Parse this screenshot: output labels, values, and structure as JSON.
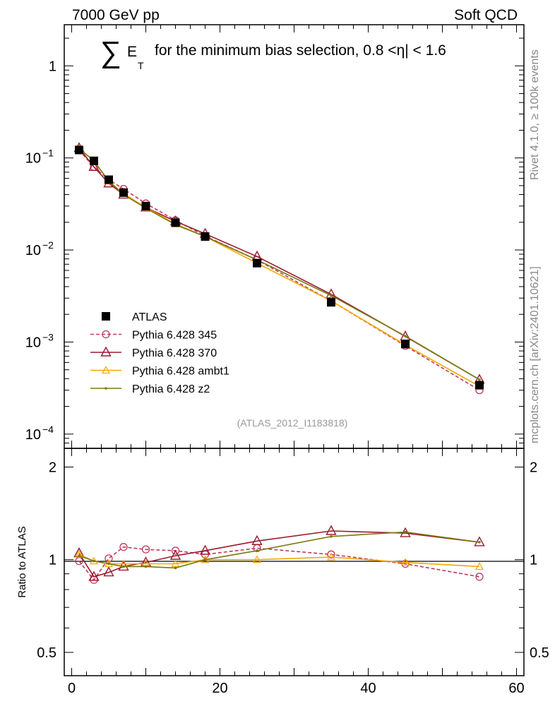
{
  "header": {
    "left": "7000 GeV pp",
    "right": "Soft QCD"
  },
  "title": {
    "sum_symbol": "∑",
    "e": "E",
    "t": "T",
    "text": "for the minimum bias selection, 0.8 <",
    "eta": "η",
    "suffix": "| < 1.6"
  },
  "side_labels": {
    "rivet": "Rivet 4.1.0, ≥ 100k events",
    "mcplots": "mcplots.cern.ch [arXiv:2401.10621]"
  },
  "analysis_id": "(ATLAS_2012_I1183818)",
  "main_y_ticks": [
    {
      "value": 1,
      "base": "1",
      "exp": ""
    },
    {
      "value": 0.1,
      "base": "10",
      "exp": "−1"
    },
    {
      "value": 0.01,
      "base": "10",
      "exp": "−2"
    },
    {
      "value": 0.001,
      "base": "10",
      "exp": "−3"
    },
    {
      "value": 0.0001,
      "base": "10",
      "exp": "−4"
    }
  ],
  "ratio_y_ticks": [
    {
      "value": 2,
      "label": "2"
    },
    {
      "value": 1,
      "label": "1"
    },
    {
      "value": 0.5,
      "label": "0.5"
    }
  ],
  "x_ticks": [
    {
      "value": 0,
      "label": "0"
    },
    {
      "value": 20,
      "label": "20"
    },
    {
      "value": 40,
      "label": "40"
    },
    {
      "value": 60,
      "label": "60"
    }
  ],
  "ratio_ylabel": "Ratio to ATLAS",
  "colors": {
    "atlas": "#000000",
    "p345": "#c0395a",
    "p370": "#9b1a30",
    "ambt1": "#f5a800",
    "z2": "#7a7a10",
    "grey_text": "#888888"
  },
  "chart_data": {
    "type": "line",
    "title": "∑ E_T for the minimum bias selection, 0.8 < |η| < 1.6",
    "xlabel": "",
    "ylabel": "",
    "xlim": [
      -1,
      61
    ],
    "ylim": [
      7e-05,
      2.8
    ],
    "yscale": "log",
    "ratio_ylim": [
      0.42,
      2.3
    ],
    "ratio_ylabel": "Ratio to ATLAS",
    "x": [
      1,
      3,
      5,
      7,
      10,
      14,
      18,
      25,
      35,
      45,
      55
    ],
    "series": [
      {
        "name": "ATLAS",
        "key": "atlas",
        "style": "data",
        "values": [
          0.122,
          0.093,
          0.058,
          0.042,
          0.03,
          0.0198,
          0.014,
          0.0072,
          0.0027,
          0.00095,
          0.00034
        ],
        "ratio": [
          1,
          1,
          1,
          1,
          1,
          1,
          1,
          1,
          1,
          1,
          1
        ]
      },
      {
        "name": "Pythia 6.428 345",
        "key": "p345",
        "style": "circle-dashed",
        "values": [
          0.121,
          0.08,
          0.058,
          0.046,
          0.032,
          0.021,
          0.0142,
          0.0078,
          0.0028,
          0.00091,
          0.0003
        ],
        "ratio": [
          0.99,
          0.86,
          1.01,
          1.1,
          1.08,
          1.07,
          1.04,
          1.09,
          1.04,
          0.97,
          0.88
        ]
      },
      {
        "name": "Pythia 6.428 370",
        "key": "p370",
        "style": "triangle-solid",
        "values": [
          0.128,
          0.08,
          0.053,
          0.04,
          0.029,
          0.0205,
          0.015,
          0.0085,
          0.0033,
          0.00115,
          0.00039
        ],
        "ratio": [
          1.05,
          0.88,
          0.91,
          0.95,
          0.98,
          1.03,
          1.07,
          1.15,
          1.24,
          1.22,
          1.14
        ]
      },
      {
        "name": "Pythia 6.428 ambt1",
        "key": "ambt1",
        "style": "triangle-open",
        "values": [
          0.127,
          0.093,
          0.056,
          0.041,
          0.029,
          0.0192,
          0.014,
          0.0072,
          0.0028,
          0.00093,
          0.00033
        ],
        "ratio": [
          1.04,
          0.99,
          0.97,
          0.97,
          0.97,
          0.97,
          1.0,
          1.0,
          1.02,
          0.98,
          0.95
        ]
      },
      {
        "name": "Pythia 6.428 z2",
        "key": "z2",
        "style": "dot-solid",
        "values": [
          0.126,
          0.093,
          0.056,
          0.04,
          0.0285,
          0.0188,
          0.014,
          0.0078,
          0.0032,
          0.00116,
          0.00039
        ],
        "ratio": [
          1.03,
          0.99,
          0.97,
          0.95,
          0.95,
          0.94,
          1.0,
          1.07,
          1.19,
          1.23,
          1.14
        ]
      }
    ],
    "legend": {
      "placement": "lower-left"
    }
  }
}
